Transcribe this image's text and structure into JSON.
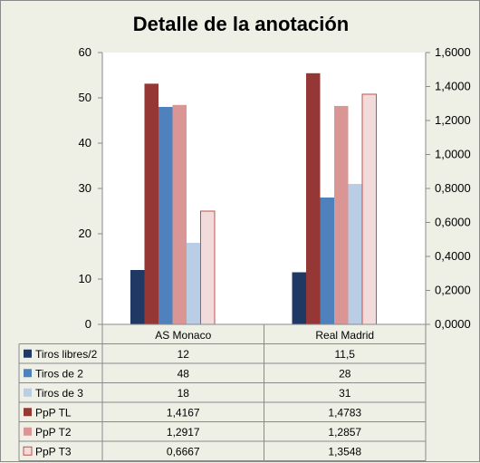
{
  "chart_data": {
    "type": "bar",
    "title": "Detalle de la anotación",
    "categories": [
      "AS Monaco",
      "Real Madrid"
    ],
    "y_left": {
      "ylim": [
        0,
        60
      ],
      "ticks": [
        "0",
        "10",
        "20",
        "30",
        "40",
        "50",
        "60"
      ]
    },
    "y_right": {
      "ylim": [
        0,
        1.6
      ],
      "ticks": [
        "0,0000",
        "0,2000",
        "0,4000",
        "0,6000",
        "0,8000",
        "1,0000",
        "1,2000",
        "1,4000",
        "1,6000"
      ]
    },
    "series": [
      {
        "name": "Tiros libres/2",
        "axis": "left",
        "color": "#1f3864",
        "values": [
          12,
          11.5
        ],
        "labels": [
          "12",
          "11,5"
        ]
      },
      {
        "name": "PpP TL",
        "axis": "right",
        "color": "#953735",
        "values": [
          1.4167,
          1.4783
        ],
        "labels": [
          "1,4167",
          "1,4783"
        ]
      },
      {
        "name": "Tiros de 2",
        "axis": "left",
        "color": "#4f81bd",
        "values": [
          48,
          28
        ],
        "labels": [
          "48",
          "28"
        ]
      },
      {
        "name": "PpP T2",
        "axis": "right",
        "color": "#d99694",
        "values": [
          1.2917,
          1.2857
        ],
        "labels": [
          "1,2917",
          "1,2857"
        ]
      },
      {
        "name": "Tiros de 3",
        "axis": "left",
        "color": "#b9cde5",
        "values": [
          18,
          31
        ],
        "labels": [
          "18",
          "31"
        ]
      },
      {
        "name": "PpP T3",
        "axis": "right",
        "color": "#f2dcdb",
        "values": [
          0.6667,
          1.3548
        ],
        "labels": [
          "0,6667",
          "1,3548"
        ]
      }
    ],
    "table_order": [
      "Tiros libres/2",
      "Tiros de 2",
      "Tiros de 3",
      "PpP TL",
      "PpP T2",
      "PpP T3"
    ],
    "grid": false,
    "legend": "data-table"
  }
}
